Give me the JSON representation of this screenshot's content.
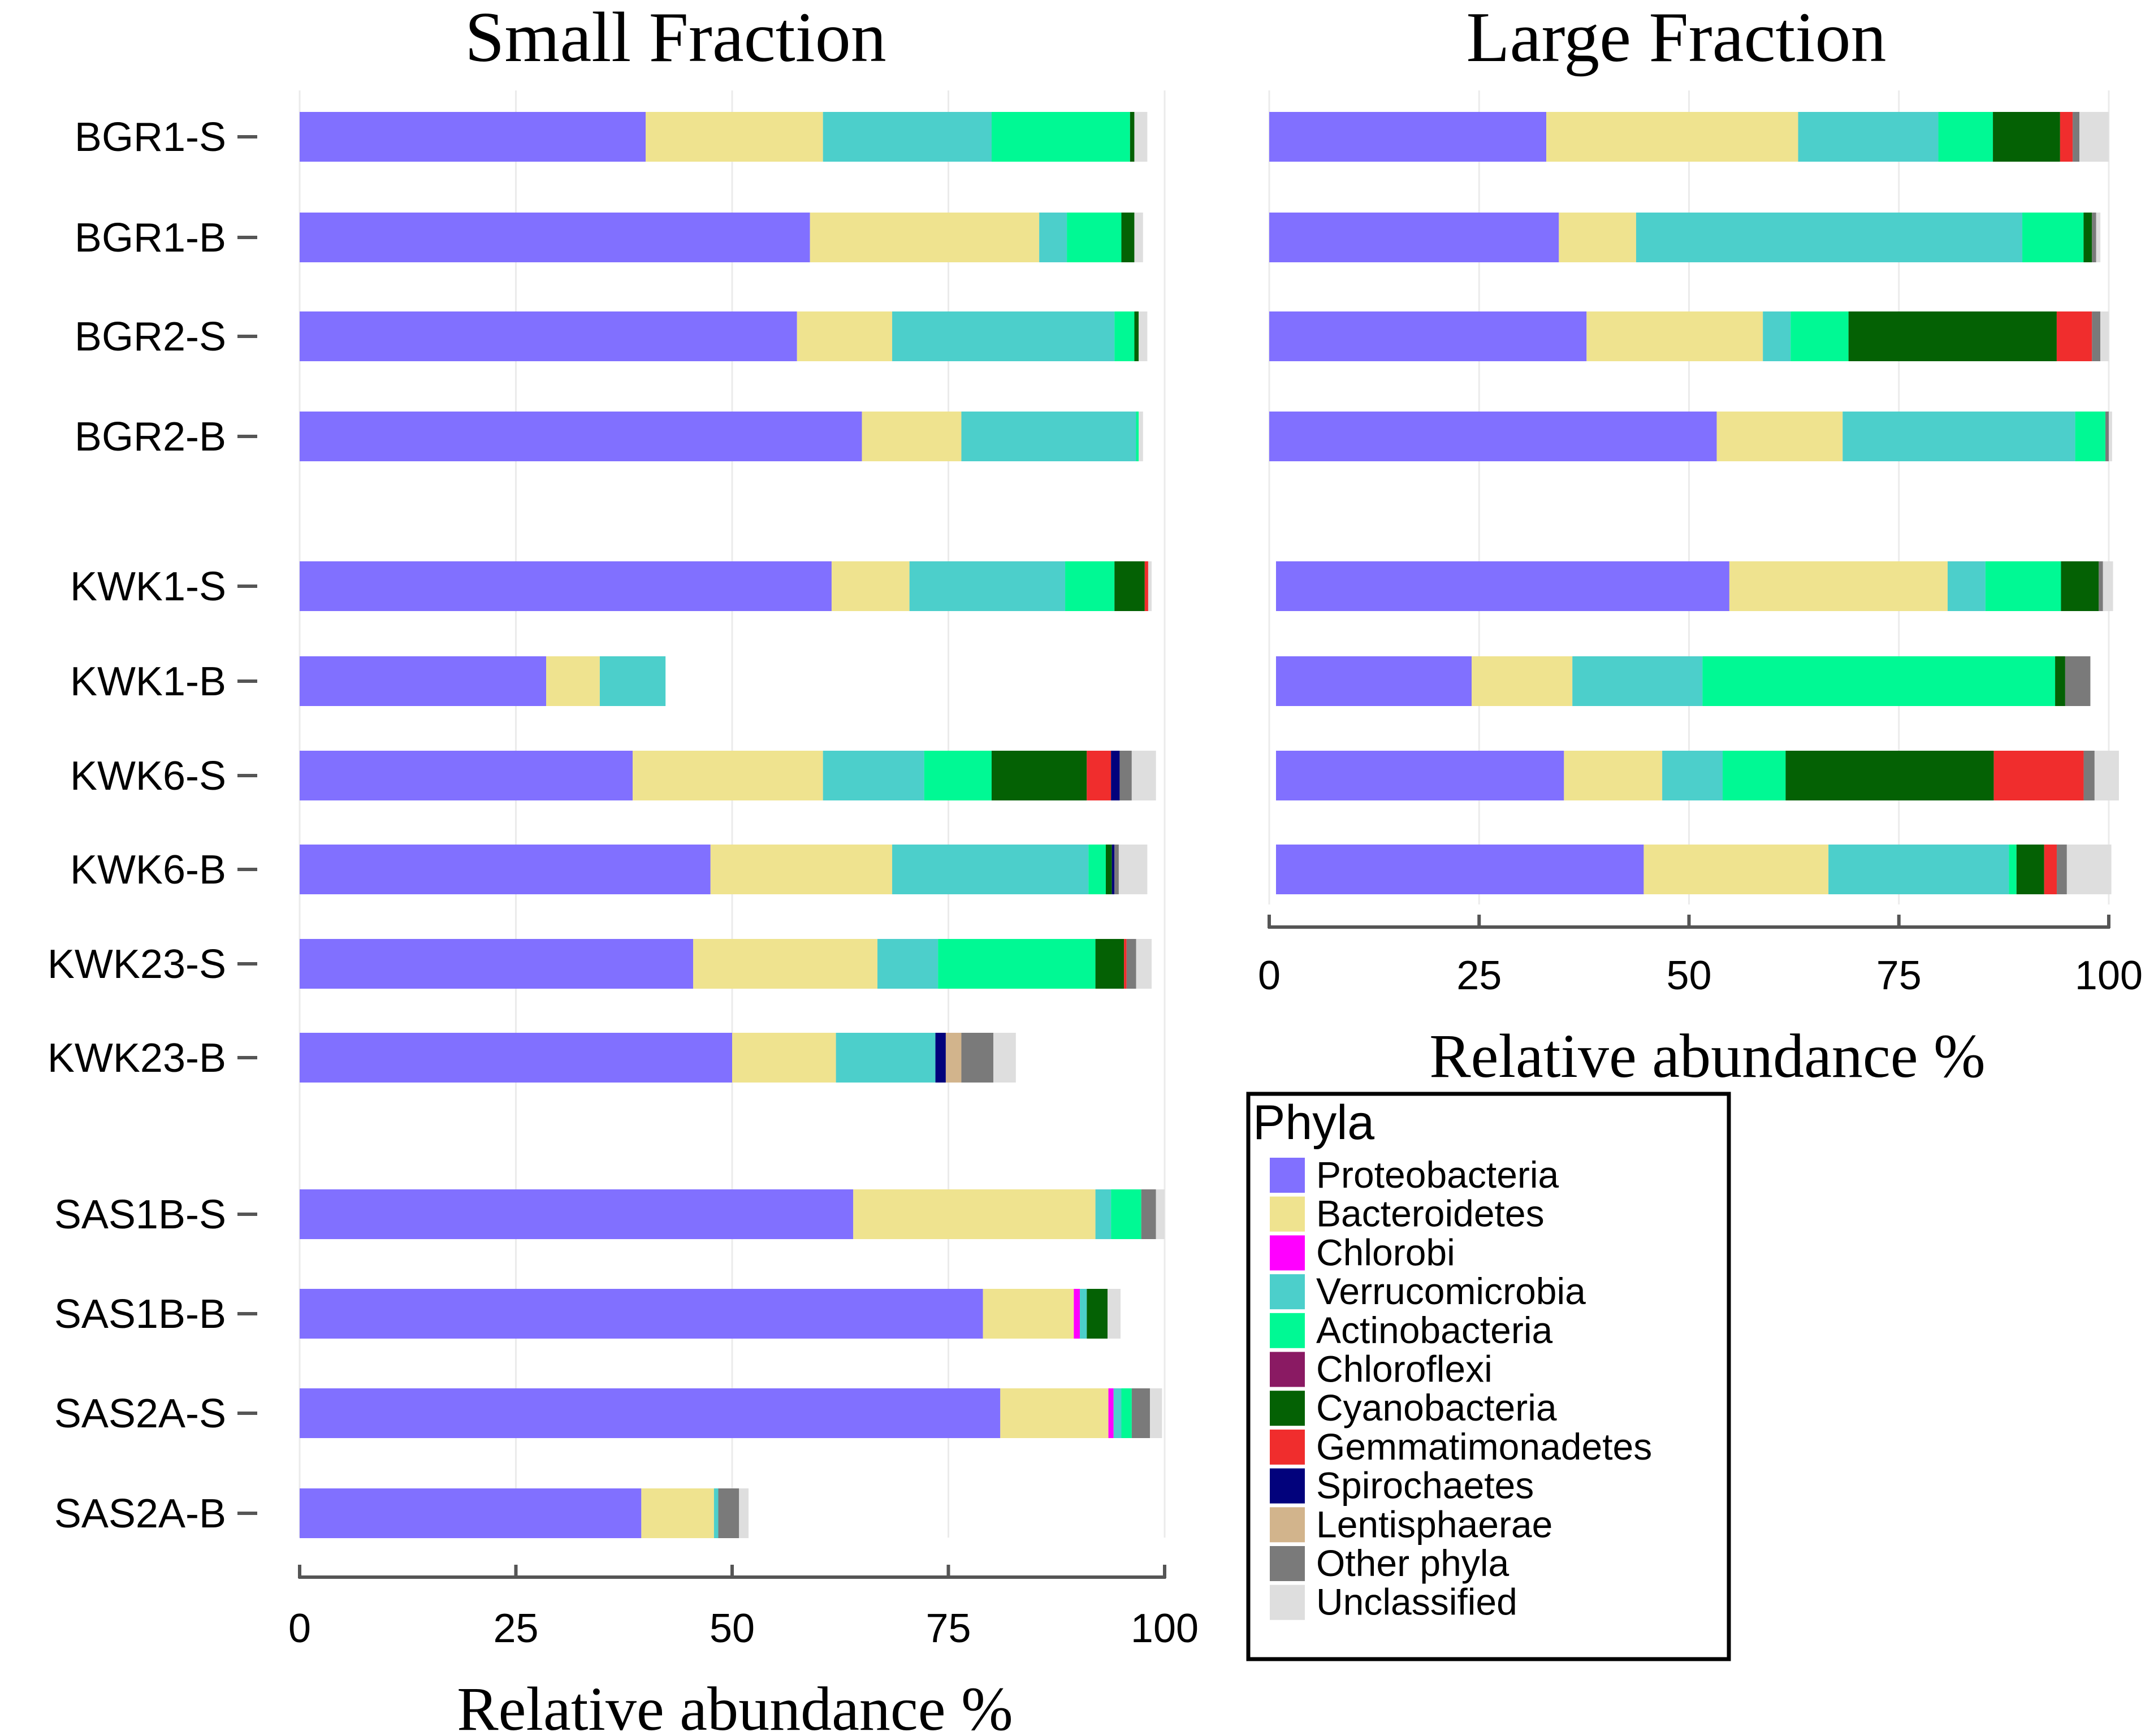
{
  "chart_data": {
    "type": "bar",
    "orientation": "horizontal",
    "stacked": true,
    "legend_title": "Phyla",
    "legend_position": "bottom-right",
    "phyla": [
      {
        "name": "Proteobacteria",
        "color": "#8170FF"
      },
      {
        "name": "Bacteroidetes",
        "color": "#EFE38F"
      },
      {
        "name": "Chlorobi",
        "color": "#FF00FF"
      },
      {
        "name": "Verrucomicrobia",
        "color": "#4CCFCB"
      },
      {
        "name": "Actinobacteria",
        "color": "#00F994"
      },
      {
        "name": "Chloroflexi",
        "color": "#8A1A63"
      },
      {
        "name": "Cyanobacteria",
        "color": "#046104"
      },
      {
        "name": "Gemmatimonadetes",
        "color": "#F02D2D"
      },
      {
        "name": "Spirochaetes",
        "color": "#02027C"
      },
      {
        "name": "Lentisphaerae",
        "color": "#D2B48C"
      },
      {
        "name": "Other phyla",
        "color": "#7A7A7A"
      },
      {
        "name": "Unclassified",
        "color": "#DEDEDE"
      }
    ],
    "panels": [
      {
        "title": "Small Fraction",
        "xlabel": "Relative abundance %",
        "xlim": [
          0,
          100
        ],
        "xticks": [
          0,
          25,
          50,
          75,
          100
        ],
        "samples": [
          {
            "label": "BGR1-S",
            "values": [
              40,
              20.5,
              0,
              19.5,
              16,
              0,
              0.5,
              0,
              0,
              0,
              0,
              1.5
            ]
          },
          {
            "label": "BGR1-B",
            "values": [
              59,
              26.5,
              0,
              3.2,
              6.3,
              0,
              1.5,
              0,
              0,
              0,
              0,
              1
            ]
          },
          {
            "label": "BGR2-S",
            "values": [
              57.5,
              11,
              0,
              25.7,
              2.3,
              0,
              0.5,
              0,
              0,
              0,
              0,
              1
            ]
          },
          {
            "label": "BGR2-B",
            "values": [
              65,
              11.5,
              0,
              20.2,
              0.3,
              0,
              0,
              0,
              0,
              0,
              0,
              0.5
            ]
          },
          {
            "label": "KWK1-S",
            "values": [
              61.5,
              9,
              0,
              18,
              5.7,
              0,
              3.5,
              0.4,
              0,
              0,
              0,
              0.4
            ]
          },
          {
            "label": "KWK1-B",
            "values": [
              28.5,
              6.2,
              0,
              7.6,
              0,
              0,
              0,
              0,
              0,
              0,
              0,
              0
            ]
          },
          {
            "label": "KWK6-S",
            "values": [
              38.5,
              22,
              0,
              11.7,
              7.8,
              0,
              11,
              2.8,
              1,
              0,
              1.4,
              2.8
            ]
          },
          {
            "label": "KWK6-B",
            "values": [
              47.5,
              21,
              0,
              22.7,
              2,
              0,
              0.7,
              0,
              0.3,
              0,
              0.5,
              3.3
            ]
          },
          {
            "label": "KWK23-S",
            "values": [
              45.5,
              21.3,
              0,
              7,
              18.2,
              0,
              3.3,
              0.3,
              0,
              0,
              1.1,
              1.8
            ]
          },
          {
            "label": "KWK23-B",
            "values": [
              50,
              12,
              0,
              11.5,
              0,
              0,
              0,
              0,
              1.2,
              1.8,
              3.7,
              2.6
            ]
          },
          {
            "label": "SAS1B-S",
            "values": [
              64,
              28,
              0,
              1.8,
              3.5,
              0,
              0,
              0,
              0,
              0,
              1.7,
              1
            ]
          },
          {
            "label": "SAS1B-B",
            "values": [
              79,
              10.5,
              0.7,
              0.8,
              0,
              0,
              2.4,
              0,
              0,
              0,
              0,
              1.5
            ]
          },
          {
            "label": "SAS2A-S",
            "values": [
              81,
              12.5,
              0.6,
              0.9,
              1.2,
              0,
              0,
              0,
              0,
              0,
              2.1,
              1.4
            ]
          },
          {
            "label": "SAS2A-B",
            "values": [
              39.5,
              8.4,
              0,
              0.5,
              0,
              0,
              0,
              0,
              0,
              0,
              2.4,
              1.1
            ]
          }
        ]
      },
      {
        "title": "Large Fraction",
        "xlabel": "Relative abundance %",
        "xlim": [
          0,
          100
        ],
        "xticks": [
          0,
          25,
          50,
          75,
          100
        ],
        "samples": [
          {
            "label": "BGR1-S",
            "values": [
              33,
              30,
              0,
              16.7,
              6.5,
              0,
              8,
              1.5,
              0,
              0,
              0.8,
              3.5
            ]
          },
          {
            "label": "BGR1-B",
            "values": [
              34.5,
              9.2,
              0,
              46,
              7.3,
              0,
              1,
              0,
              0,
              0,
              0.5,
              0.5
            ]
          },
          {
            "label": "BGR2-S",
            "values": [
              37.8,
              21,
              0,
              3.3,
              6.9,
              0,
              24.8,
              4.2,
              0,
              0,
              1,
              1
            ]
          },
          {
            "label": "BGR2-B",
            "values": [
              53.3,
              15,
              0,
              27.7,
              3.6,
              0,
              0,
              0,
              0,
              0,
              0.4,
              0.4
            ]
          },
          {
            "label": "KWK1-S",
            "values": [
              54,
              26,
              0,
              4.5,
              9,
              0,
              4.5,
              0,
              0,
              0,
              0.5,
              1.2
            ]
          },
          {
            "label": "KWK1-B",
            "values": [
              23.3,
              12,
              0,
              15.5,
              42,
              0,
              1.2,
              0,
              0,
              0,
              3,
              0
            ]
          },
          {
            "label": "KWK6-S",
            "values": [
              34.3,
              11.7,
              0,
              7.2,
              7.5,
              0,
              24.8,
              10.7,
              0,
              0,
              1.3,
              2.9
            ]
          },
          {
            "label": "KWK6-B",
            "values": [
              43.8,
              22,
              0,
              21.5,
              0.9,
              0,
              3.3,
              1.5,
              0,
              0,
              1.2,
              5.3
            ]
          }
        ]
      }
    ]
  }
}
